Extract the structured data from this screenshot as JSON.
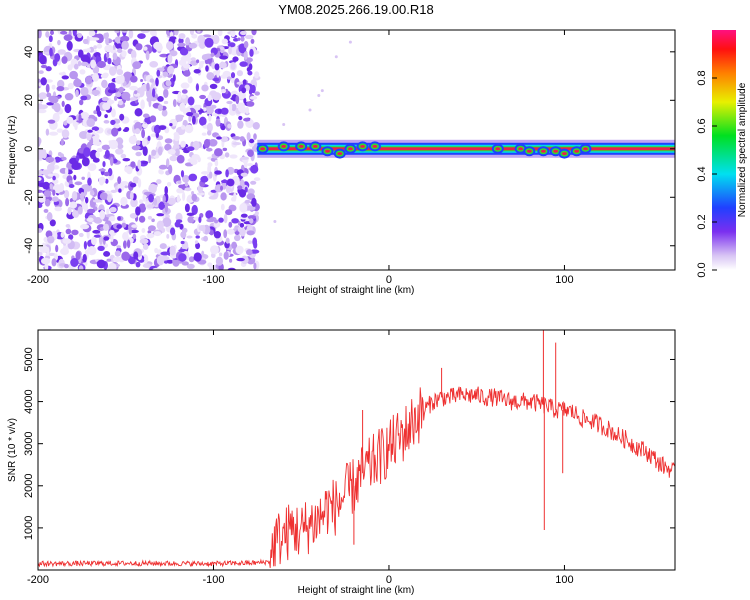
{
  "title": "YM08.2025.266.19.00.R18",
  "colors": {
    "snr_line": "#ee3030",
    "noise": "#7a3ef0",
    "ridge": "#e8224a"
  },
  "chart_data": [
    {
      "type": "heatmap",
      "xlabel": "Height of straight line (km)",
      "ylabel": "Frequency (Hz)",
      "xlim": [
        -200,
        163
      ],
      "ylim": [
        -50,
        49
      ],
      "xticks": [
        -200,
        -100,
        0,
        100
      ],
      "yticks": [
        -40,
        -20,
        0,
        20,
        40
      ],
      "noise_region_x": [
        -200,
        -75
      ],
      "signal_start_x": -75,
      "signal_frequency": 0,
      "colorbar": {
        "label": "Normalized spectral amplitude",
        "range": [
          0,
          1
        ],
        "ticks": [
          "0.0",
          "0.2",
          "0.4",
          "0.6",
          "0.8"
        ]
      }
    },
    {
      "type": "line",
      "xlabel": "Height of straight line (km)",
      "ylabel": "SNR (10 * v/v)",
      "xlim": [
        -200,
        163
      ],
      "ylim": [
        0,
        5700
      ],
      "xticks": [
        -200,
        -100,
        0,
        100
      ],
      "yticks": [
        1000,
        2000,
        3000,
        4000,
        5000
      ],
      "series": [
        {
          "name": "SNR",
          "x": [
            -200,
            -150,
            -100,
            -75,
            -68,
            -65,
            -60,
            -55,
            -50,
            -45,
            -40,
            -35,
            -30,
            -25,
            -20,
            -15,
            -10,
            -5,
            0,
            5,
            10,
            15,
            20,
            25,
            30,
            35,
            40,
            45,
            50,
            55,
            60,
            65,
            70,
            75,
            80,
            85,
            90,
            95,
            100,
            105,
            110,
            115,
            120,
            125,
            130,
            135,
            140,
            145,
            150,
            155,
            160,
            163
          ],
          "y": [
            150,
            160,
            150,
            170,
            200,
            700,
            800,
            1000,
            900,
            1100,
            1200,
            1500,
            1500,
            1800,
            2000,
            2300,
            2500,
            2700,
            2900,
            3100,
            3300,
            3600,
            3800,
            4000,
            4100,
            4100,
            4150,
            4150,
            4150,
            4100,
            4100,
            4050,
            4000,
            4000,
            4000,
            3950,
            3900,
            3800,
            3800,
            3750,
            3600,
            3550,
            3450,
            3350,
            3200,
            3100,
            2950,
            2850,
            2700,
            2500,
            2400,
            2300
          ]
        }
      ],
      "spikes": [
        {
          "x": 88,
          "y": 5700
        },
        {
          "x": 88.5,
          "y": 950
        },
        {
          "x": -15,
          "y": 3800
        },
        {
          "x": -20,
          "y": 600
        },
        {
          "x": 30,
          "y": 4800
        },
        {
          "x": 95,
          "y": 5400
        },
        {
          "x": 99,
          "y": 2300
        }
      ]
    }
  ]
}
